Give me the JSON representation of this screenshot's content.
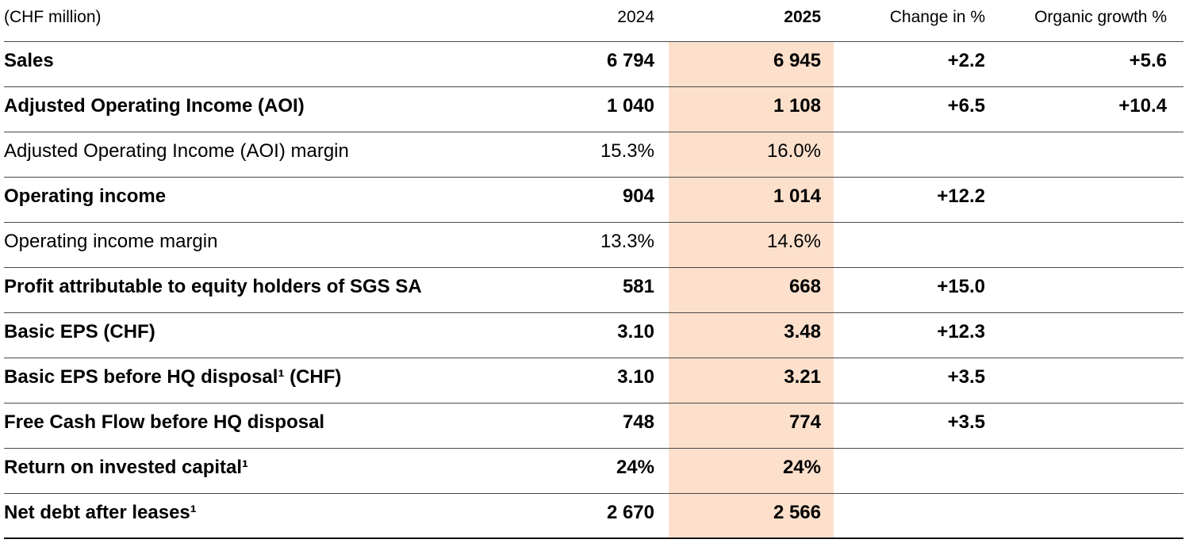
{
  "table": {
    "unit_label": "(CHF million)",
    "headers": {
      "col2024": "2024",
      "col2025": "2025",
      "change": "Change in %",
      "organic": "Organic growth %"
    },
    "highlight_color": "#fce0cc",
    "rows": [
      {
        "label": "Sales",
        "bold": true,
        "v2024": "6 794",
        "v2025": "6 945",
        "change": "+2.2",
        "organic": "+5.6"
      },
      {
        "label": "Adjusted Operating Income (AOI)",
        "bold": true,
        "v2024": "1 040",
        "v2025": "1 108",
        "change": "+6.5",
        "organic": "+10.4"
      },
      {
        "label": "Adjusted Operating Income (AOI) margin",
        "bold": false,
        "v2024": "15.3%",
        "v2025": "16.0%",
        "change": "",
        "organic": ""
      },
      {
        "label": "Operating income",
        "bold": true,
        "v2024": "904",
        "v2025": "1 014",
        "change": "+12.2",
        "organic": ""
      },
      {
        "label": "Operating income margin",
        "bold": false,
        "v2024": "13.3%",
        "v2025": "14.6%",
        "change": "",
        "organic": ""
      },
      {
        "label": "Profit attributable to equity holders of SGS SA",
        "bold": true,
        "v2024": "581",
        "v2025": "668",
        "change": "+15.0",
        "organic": ""
      },
      {
        "label": "Basic EPS (CHF)",
        "bold": true,
        "v2024": "3.10",
        "v2025": "3.48",
        "change": "+12.3",
        "organic": ""
      },
      {
        "label": "Basic EPS before HQ disposal¹ (CHF)",
        "bold": true,
        "v2024": "3.10",
        "v2025": "3.21",
        "change": "+3.5",
        "organic": ""
      },
      {
        "label": "Free Cash Flow before HQ disposal",
        "bold": true,
        "v2024": "748",
        "v2025": "774",
        "change": "+3.5",
        "organic": ""
      },
      {
        "label": "Return on invested capital¹",
        "bold": true,
        "v2024": "24%",
        "v2025": "24%",
        "change": "",
        "organic": ""
      },
      {
        "label": "Net debt after leases¹",
        "bold": true,
        "v2024": "2 670",
        "v2025": "2 566",
        "change": "",
        "organic": ""
      }
    ]
  }
}
